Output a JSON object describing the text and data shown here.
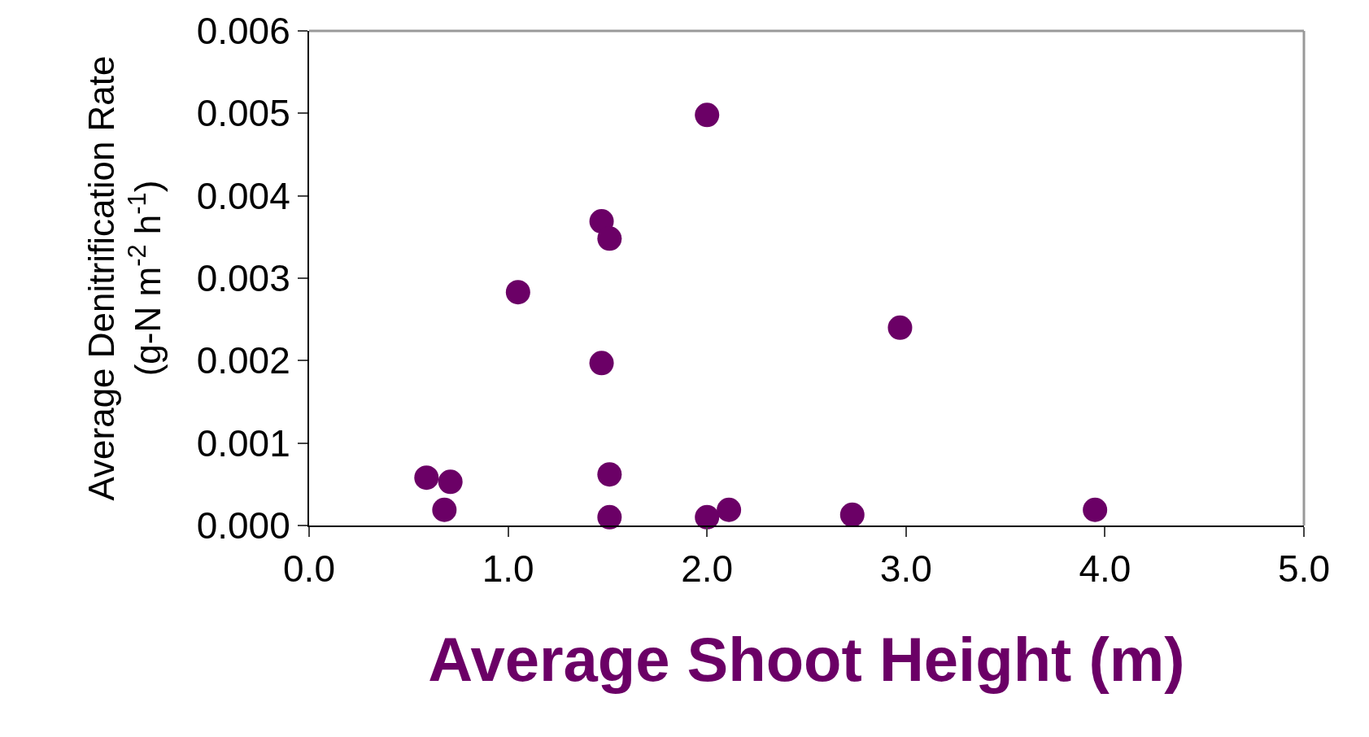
{
  "chart_data": {
    "type": "scatter",
    "xlabel": "Average Shoot Height (m)",
    "ylabel": "Average Denitrification Rate\n(g-N m$^{-2}$ h$^{-1}$)",
    "series": [
      {
        "color": "#6b0066",
        "x": [
          0.59,
          0.71,
          0.68,
          1.05,
          1.47,
          1.51,
          1.47,
          1.51,
          1.51,
          2.0,
          2.0,
          2.11,
          2.73,
          2.97,
          3.95
        ],
        "values": [
          0.00058,
          0.00053,
          0.00019,
          0.00283,
          0.00369,
          0.00348,
          0.00197,
          0.00062,
          0.0001,
          0.00498,
          0.0001,
          0.00019,
          0.00013,
          0.0024,
          0.00019
        ]
      }
    ],
    "xlim": [
      0,
      5
    ],
    "xticks": [
      {
        "value": 0,
        "label": "0.0"
      },
      {
        "value": 1,
        "label": "1.0"
      },
      {
        "value": 2,
        "label": "2.0"
      },
      {
        "value": 3,
        "label": "3.0"
      },
      {
        "value": 4,
        "label": "4.0"
      },
      {
        "value": 5,
        "label": "5.0"
      }
    ],
    "ylim": [
      0,
      0.006
    ],
    "yticks": [
      {
        "value": 0,
        "label": "0.000"
      },
      {
        "value": 0.001,
        "label": "0.001"
      },
      {
        "value": 0.002,
        "label": "0.002"
      },
      {
        "value": 0.003,
        "label": "0.003"
      },
      {
        "value": 0.004,
        "label": "0.004"
      },
      {
        "value": 0.005,
        "label": "0.005"
      },
      {
        "value": 0.006,
        "label": "0.006"
      }
    ],
    "marker": "circle",
    "legend": false
  }
}
